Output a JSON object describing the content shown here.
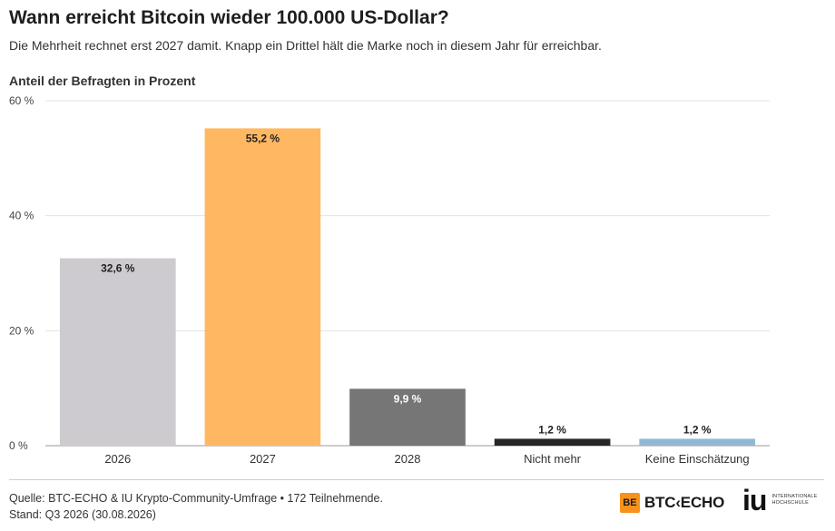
{
  "header": {
    "title": "Wann erreicht Bitcoin wieder 100.000 US-Dollar?",
    "subtitle": "Die Mehrheit rechnet erst 2027 damit. Knapp ein Drittel hält die Marke noch in diesem Jahr für erreichbar.",
    "axis_heading": "Anteil der Befragten in Prozent"
  },
  "chart_data": {
    "type": "bar",
    "categories": [
      "2026",
      "2027",
      "2028",
      "Nicht mehr",
      "Keine Einschätzung"
    ],
    "values": [
      32.6,
      55.2,
      9.9,
      1.2,
      1.2
    ],
    "data_labels": [
      "32,6 %",
      "55,2 %",
      "9,9 %",
      "1,2 %",
      "1,2 %"
    ],
    "bar_colors": [
      "#cdcbcf",
      "#ffb861",
      "#767676",
      "#262626",
      "#8fb8d4"
    ],
    "ylim": [
      0,
      60
    ],
    "yticks": [
      0,
      20,
      40,
      60
    ],
    "ytick_labels": [
      "0 %",
      "20 %",
      "40 %",
      "60 %"
    ],
    "ylabel": "Anteil der Befragten in Prozent",
    "grid": true
  },
  "footer": {
    "source": "Quelle: BTC-ECHO & IU Krypto-Community-Umfrage • 172 Teilnehmende.",
    "date": "Stand: Q3 2026 (30.08.2026)"
  },
  "logos": {
    "btc_mark": "BE",
    "btc_word": "BTC‹ECHO",
    "iu_mark": "iu",
    "iu_sub_line1": "INTERNATIONALE",
    "iu_sub_line2": "HOCHSCHULE"
  }
}
